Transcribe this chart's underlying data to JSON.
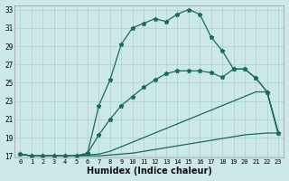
{
  "xlabel": "Humidex (Indice chaleur)",
  "bg_color": "#cde8e8",
  "grid_color": "#a8d0cc",
  "line_color": "#1a6b5a",
  "xlim": [
    -0.5,
    23.5
  ],
  "ylim": [
    16.8,
    33.5
  ],
  "yticks": [
    17,
    19,
    21,
    23,
    25,
    27,
    29,
    31,
    33
  ],
  "xticks": [
    0,
    1,
    2,
    3,
    4,
    5,
    6,
    7,
    8,
    9,
    10,
    11,
    12,
    13,
    14,
    15,
    16,
    17,
    18,
    19,
    20,
    21,
    22,
    23
  ],
  "curve1_x": [
    0,
    1,
    2,
    3,
    4,
    5,
    6,
    7,
    8,
    9,
    10,
    11,
    12,
    13,
    14,
    15,
    16,
    17,
    18,
    19,
    20,
    21,
    22,
    23
  ],
  "curve1_y": [
    17.2,
    17.0,
    17.0,
    17.0,
    17.0,
    17.0,
    17.3,
    22.5,
    25.3,
    29.2,
    31.0,
    31.5,
    32.0,
    31.7,
    32.5,
    33.0,
    32.5,
    30.0,
    28.5,
    26.5,
    26.5,
    25.5,
    24.0,
    19.5
  ],
  "curve1_markers": [
    0,
    1,
    2,
    3,
    4,
    5,
    6,
    7,
    8,
    9,
    10,
    11,
    12,
    13,
    14,
    15,
    16,
    17,
    18,
    19,
    20,
    21,
    22,
    23
  ],
  "curve2_x": [
    0,
    1,
    2,
    3,
    4,
    5,
    6,
    7,
    8,
    9,
    10,
    11,
    12,
    13,
    14,
    15,
    16,
    17,
    18,
    19,
    20,
    21,
    22,
    23
  ],
  "curve2_y": [
    17.2,
    17.0,
    17.0,
    17.0,
    17.0,
    17.0,
    17.3,
    19.3,
    21.0,
    22.5,
    23.5,
    24.5,
    25.3,
    26.0,
    26.3,
    26.3,
    26.3,
    26.1,
    25.6,
    26.5,
    26.5,
    25.5,
    24.0,
    19.5
  ],
  "curve2_markers": [
    0,
    1,
    2,
    3,
    4,
    5,
    6,
    7,
    8,
    9,
    10,
    11,
    12,
    13,
    14,
    15,
    16,
    17,
    18,
    19,
    20,
    21,
    22,
    23
  ],
  "curve3_x": [
    0,
    1,
    2,
    3,
    4,
    5,
    6,
    7,
    8,
    9,
    10,
    11,
    12,
    13,
    14,
    15,
    16,
    17,
    18,
    19,
    20,
    21,
    22,
    23
  ],
  "curve3_y": [
    17.2,
    17.0,
    17.0,
    17.0,
    17.0,
    17.0,
    17.1,
    17.2,
    17.5,
    18.0,
    18.5,
    19.0,
    19.5,
    20.0,
    20.5,
    21.0,
    21.5,
    22.0,
    22.5,
    23.0,
    23.5,
    24.0,
    24.0,
    19.3
  ],
  "curve4_x": [
    0,
    1,
    2,
    3,
    4,
    5,
    6,
    7,
    8,
    9,
    10,
    11,
    12,
    13,
    14,
    15,
    16,
    17,
    18,
    19,
    20,
    21,
    22,
    23
  ],
  "curve4_y": [
    17.2,
    17.0,
    17.0,
    17.0,
    17.0,
    17.0,
    17.0,
    17.0,
    17.1,
    17.2,
    17.3,
    17.5,
    17.7,
    17.9,
    18.1,
    18.3,
    18.5,
    18.7,
    18.9,
    19.1,
    19.3,
    19.4,
    19.5,
    19.5
  ]
}
